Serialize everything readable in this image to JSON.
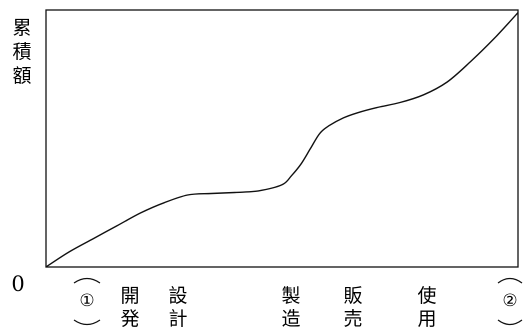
{
  "chart_data": {
    "type": "line",
    "ylabel": "累積額",
    "origin_label": "0",
    "x_markers": [
      "①",
      "②"
    ],
    "stages": [
      {
        "label": "開発"
      },
      {
        "label": "設計"
      },
      {
        "label": "製造"
      },
      {
        "label": "販売"
      },
      {
        "label": "使用"
      }
    ],
    "xlim": [
      0,
      100
    ],
    "ylim": [
      0,
      100
    ],
    "grid": false,
    "series": [
      {
        "x": [
          0,
          5,
          10,
          15,
          20,
          25,
          30,
          35,
          40,
          45,
          50,
          52,
          54,
          56,
          58,
          60,
          63,
          66,
          70,
          75,
          80,
          85,
          90,
          95,
          100
        ],
        "y": [
          0,
          6,
          11,
          16,
          21,
          25,
          28,
          28.6,
          29,
          29.6,
          32,
          35.5,
          40,
          46,
          52,
          55,
          58,
          60,
          62,
          64,
          67,
          72,
          80,
          89,
          99
        ]
      }
    ],
    "colors": {
      "line": "#111111",
      "frame": "#111111"
    }
  }
}
